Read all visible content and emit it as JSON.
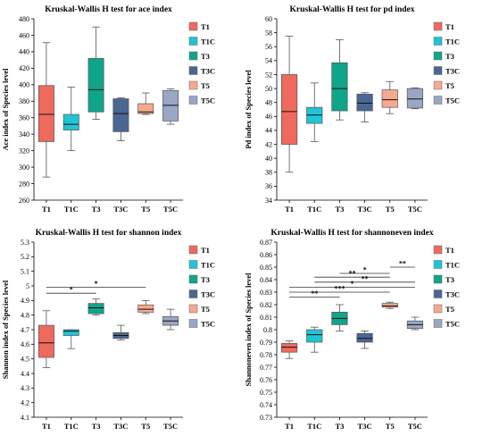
{
  "groups": [
    "T1",
    "T1C",
    "T3",
    "T3C",
    "T5",
    "T5C"
  ],
  "colors": {
    "T1": "#ef6a5e",
    "T1C": "#20c4d6",
    "T3": "#0fa58a",
    "T3C": "#4a6794",
    "T5": "#f7a98f",
    "T5C": "#9aa7c4"
  },
  "chart_data": [
    {
      "type": "boxplot",
      "title": "Kruskal-Wallis H test for ace index",
      "ylabel": "Ace index of Species level",
      "ylim": [
        260,
        480
      ],
      "yticks": [
        260,
        280,
        300,
        320,
        340,
        360,
        380,
        400,
        420,
        440,
        460,
        480
      ],
      "boxes": [
        {
          "group": "T1",
          "min": 288,
          "q1": 331,
          "median": 364,
          "q3": 399,
          "max": 451
        },
        {
          "group": "T1C",
          "min": 320,
          "q1": 345,
          "median": 352,
          "q3": 364,
          "max": 397
        },
        {
          "group": "T3",
          "min": 358,
          "q1": 367,
          "median": 394,
          "q3": 432,
          "max": 470
        },
        {
          "group": "T3C",
          "min": 332,
          "q1": 343,
          "median": 365,
          "q3": 383,
          "max": 384
        },
        {
          "group": "T5",
          "min": 364,
          "q1": 365,
          "median": 367,
          "q3": 377,
          "max": 390
        },
        {
          "group": "T5C",
          "min": 352,
          "q1": 356,
          "median": 375,
          "q3": 393,
          "max": 395
        }
      ],
      "significance": []
    },
    {
      "type": "boxplot",
      "title": "Kruskal-Wallis H test for pd index",
      "ylabel": "Pd index of Species level",
      "ylim": [
        34,
        60
      ],
      "yticks": [
        34,
        36,
        38,
        40,
        42,
        44,
        46,
        48,
        50,
        52,
        54,
        56,
        58,
        60
      ],
      "boxes": [
        {
          "group": "T1",
          "min": 38,
          "q1": 42,
          "median": 46.7,
          "q3": 52,
          "max": 57.5
        },
        {
          "group": "T1C",
          "min": 42.4,
          "q1": 45,
          "median": 46.2,
          "q3": 47.3,
          "max": 50.8
        },
        {
          "group": "T3",
          "min": 45.5,
          "q1": 46.8,
          "median": 50,
          "q3": 53.7,
          "max": 57
        },
        {
          "group": "T3C",
          "min": 45.2,
          "q1": 46.8,
          "median": 47.9,
          "q3": 49.2,
          "max": 49.4
        },
        {
          "group": "T5",
          "min": 46.4,
          "q1": 47.3,
          "median": 48.4,
          "q3": 49.8,
          "max": 51
        },
        {
          "group": "T5C",
          "min": 47.1,
          "q1": 47.2,
          "median": 48.5,
          "q3": 50,
          "max": 50.1
        }
      ],
      "significance": []
    },
    {
      "type": "boxplot",
      "title": "Kruskal-Wallis H test for shannon index",
      "ylabel": "Shannon index of Species level",
      "ylim": [
        4.1,
        5.3
      ],
      "yticks": [
        4.1,
        4.2,
        4.3,
        4.4,
        4.5,
        4.6,
        4.7,
        4.8,
        4.9,
        5,
        5.1,
        5.2,
        5.3
      ],
      "boxes": [
        {
          "group": "T1",
          "min": 4.44,
          "q1": 4.51,
          "median": 4.61,
          "q3": 4.73,
          "max": 4.83
        },
        {
          "group": "T1C",
          "min": 4.57,
          "q1": 4.66,
          "median": 4.69,
          "q3": 4.7,
          "max": 4.7
        },
        {
          "group": "T3",
          "min": 4.8,
          "q1": 4.81,
          "median": 4.85,
          "q3": 4.88,
          "max": 4.91
        },
        {
          "group": "T3C",
          "min": 4.63,
          "q1": 4.64,
          "median": 4.66,
          "q3": 4.68,
          "max": 4.73
        },
        {
          "group": "T5",
          "min": 4.81,
          "q1": 4.82,
          "median": 4.84,
          "q3": 4.87,
          "max": 4.9
        },
        {
          "group": "T5C",
          "min": 4.7,
          "q1": 4.73,
          "median": 4.76,
          "q3": 4.79,
          "max": 4.84
        }
      ],
      "significance": [
        {
          "from": "T1",
          "to": "T3",
          "label": "*",
          "y": 4.95
        },
        {
          "from": "T1",
          "to": "T5",
          "label": "*",
          "y": 4.99
        }
      ]
    },
    {
      "type": "boxplot",
      "title": "Kruskal-Wallis H test for shannoneven index",
      "ylabel": "Shannoneven index of Species level",
      "ylim": [
        0.73,
        0.87
      ],
      "yticks": [
        0.73,
        0.74,
        0.75,
        0.76,
        0.77,
        0.78,
        0.79,
        0.8,
        0.81,
        0.82,
        0.83,
        0.84,
        0.85,
        0.86,
        0.87
      ],
      "boxes": [
        {
          "group": "T1",
          "min": 0.777,
          "q1": 0.782,
          "median": 0.786,
          "q3": 0.789,
          "max": 0.791
        },
        {
          "group": "T1C",
          "min": 0.782,
          "q1": 0.79,
          "median": 0.796,
          "q3": 0.8,
          "max": 0.802
        },
        {
          "group": "T3",
          "min": 0.799,
          "q1": 0.804,
          "median": 0.809,
          "q3": 0.814,
          "max": 0.82
        },
        {
          "group": "T3C",
          "min": 0.785,
          "q1": 0.79,
          "median": 0.793,
          "q3": 0.797,
          "max": 0.799
        },
        {
          "group": "T5",
          "min": 0.817,
          "q1": 0.818,
          "median": 0.819,
          "q3": 0.821,
          "max": 0.822
        },
        {
          "group": "T5C",
          "min": 0.8,
          "q1": 0.801,
          "median": 0.804,
          "q3": 0.807,
          "max": 0.81
        }
      ],
      "significance": [
        {
          "from": "T5",
          "to": "T5C",
          "label": "**",
          "y": 0.85
        },
        {
          "from": "T3",
          "to": "T5",
          "label": "*",
          "y": 0.845
        },
        {
          "from": "T1C",
          "to": "T5",
          "label": "**",
          "y": 0.842
        },
        {
          "from": "T1C",
          "to": "T5C",
          "label": "**",
          "y": 0.838
        },
        {
          "from": "T1",
          "to": "T5C",
          "label": "*",
          "y": 0.834
        },
        {
          "from": "T1",
          "to": "T5",
          "label": "***",
          "y": 0.83
        },
        {
          "from": "T1",
          "to": "T3",
          "label": "**",
          "y": 0.826
        }
      ]
    }
  ]
}
